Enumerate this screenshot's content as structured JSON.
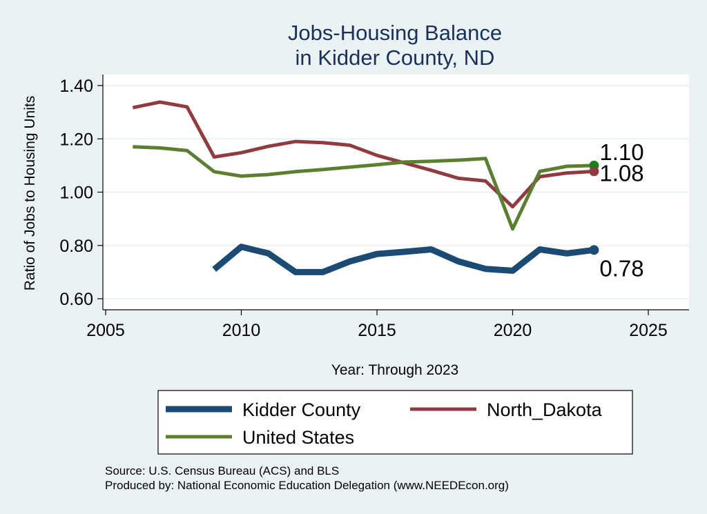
{
  "chart_data": {
    "type": "line",
    "title": [
      "Jobs-Housing Balance",
      "in Kidder County, ND"
    ],
    "xlabel": "Year: Through 2023",
    "ylabel": "Ratio of Jobs to Housing Units",
    "xlim": [
      2005,
      2025
    ],
    "ylim": [
      0.6,
      1.4
    ],
    "xticks": [
      2005,
      2010,
      2015,
      2020,
      2025
    ],
    "yticks": [
      0.6,
      0.8,
      1.0,
      1.2,
      1.4
    ],
    "ytick_labels": [
      "0.60",
      "0.80",
      "1.00",
      "1.20",
      "1.40"
    ],
    "grid": true,
    "legend_position": "bottom",
    "series": [
      {
        "name": "Kidder County",
        "color": "#1b4a73",
        "x": [
          2009,
          2010,
          2011,
          2012,
          2013,
          2014,
          2015,
          2016,
          2017,
          2018,
          2019,
          2020,
          2021,
          2022,
          2023
        ],
        "values": [
          0.71,
          0.795,
          0.77,
          0.7,
          0.7,
          0.74,
          0.768,
          0.776,
          0.785,
          0.74,
          0.712,
          0.705,
          0.785,
          0.77,
          0.783
        ],
        "end_label": "0.78"
      },
      {
        "name": "North_Dakota",
        "color": "#8f3b40",
        "x": [
          2006,
          2007,
          2008,
          2009,
          2010,
          2011,
          2012,
          2013,
          2014,
          2015,
          2016,
          2017,
          2018,
          2019,
          2020,
          2021,
          2022,
          2023
        ],
        "values": [
          1.317,
          1.338,
          1.32,
          1.132,
          1.148,
          1.172,
          1.19,
          1.186,
          1.176,
          1.138,
          1.11,
          1.082,
          1.052,
          1.042,
          0.945,
          1.058,
          1.072,
          1.078
        ],
        "end_label": "1.08"
      },
      {
        "name": "United States",
        "color": "#5b7f2f",
        "x": [
          2006,
          2007,
          2008,
          2009,
          2010,
          2011,
          2012,
          2013,
          2014,
          2015,
          2016,
          2017,
          2018,
          2019,
          2020,
          2021,
          2022,
          2023
        ],
        "values": [
          1.17,
          1.166,
          1.156,
          1.077,
          1.06,
          1.066,
          1.077,
          1.085,
          1.094,
          1.103,
          1.113,
          1.116,
          1.12,
          1.126,
          0.862,
          1.078,
          1.097,
          1.1
        ],
        "end_label": "1.10"
      }
    ],
    "end_markers": [
      {
        "series": "United States",
        "color": "#198219"
      },
      {
        "series": "North_Dakota",
        "color": "#8f3b40"
      },
      {
        "series": "Kidder County",
        "color": "#1b4a73"
      }
    ],
    "source_lines": [
      "Source: U.S. Census Bureau (ACS) and BLS",
      "Produced by: National Economic Education Delegation (www.NEEDEcon.org)"
    ]
  }
}
